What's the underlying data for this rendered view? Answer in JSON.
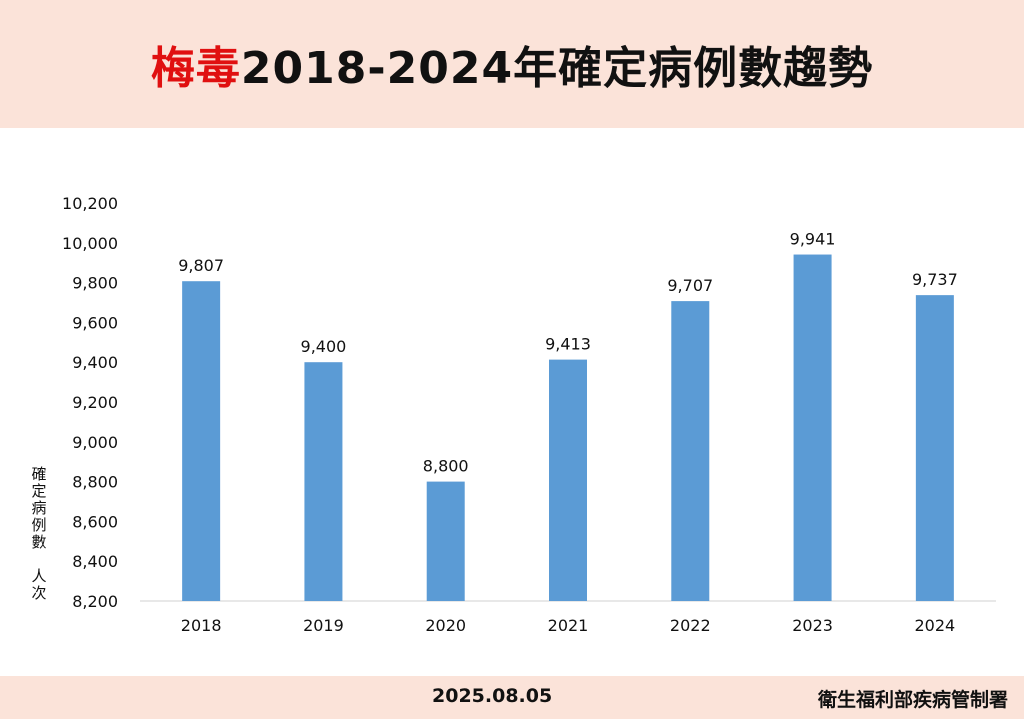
{
  "header": {
    "title_accent": "梅毒",
    "title_rest": "2018-2024年確定病例數趨勢"
  },
  "footer": {
    "date": "2025.08.05",
    "org": "衛生福利部疾病管制署"
  },
  "colors": {
    "bar": "#5b9bd5",
    "title_accent": "#e01010",
    "band": "#fbe3d9"
  },
  "chart_data": {
    "type": "bar",
    "categories": [
      "2018",
      "2019",
      "2020",
      "2021",
      "2022",
      "2023",
      "2024"
    ],
    "values": [
      9807,
      9400,
      8800,
      9413,
      9707,
      9941,
      9737
    ],
    "value_labels": [
      "9,807",
      "9,400",
      "8,800",
      "9,413",
      "9,707",
      "9,941",
      "9,737"
    ],
    "ylabel": "確定病例數 人次",
    "ylim": [
      8200,
      10200
    ],
    "yticks": [
      8200,
      8400,
      8600,
      8800,
      9000,
      9200,
      9400,
      9600,
      9800,
      10000,
      10200
    ],
    "ytick_labels": [
      "8,200",
      "8,400",
      "8,600",
      "8,800",
      "9,000",
      "9,200",
      "9,400",
      "9,600",
      "9,800",
      "10,000",
      "10,200"
    ],
    "grid": false
  }
}
